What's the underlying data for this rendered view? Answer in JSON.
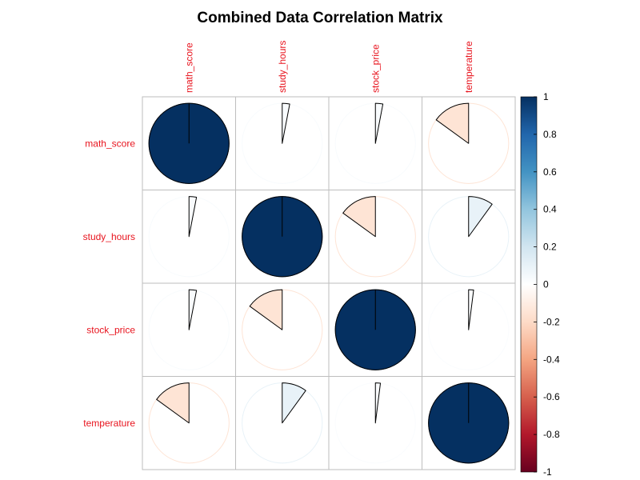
{
  "chart_data": {
    "type": "heatmap",
    "title": "Combined Data Correlation Matrix",
    "method": "pie",
    "variables": [
      "math_score",
      "study_hours",
      "stock_price",
      "temperature"
    ],
    "matrix": [
      [
        1.0,
        0.03,
        0.03,
        -0.15
      ],
      [
        0.03,
        1.0,
        -0.15,
        0.1
      ],
      [
        0.03,
        -0.15,
        1.0,
        0.02
      ],
      [
        -0.15,
        0.1,
        0.02,
        1.0
      ]
    ],
    "colorbar": {
      "range": [
        -1,
        1
      ],
      "ticks": [
        "1",
        "0.8",
        "0.6",
        "0.4",
        "0.2",
        "0",
        "-0.2",
        "-0.4",
        "-0.6",
        "-0.8",
        "-1"
      ],
      "low_color": "#67001f",
      "mid_color": "#ffffff",
      "high_color": "#053061"
    },
    "grid": true,
    "label_color": "#e8141e"
  }
}
